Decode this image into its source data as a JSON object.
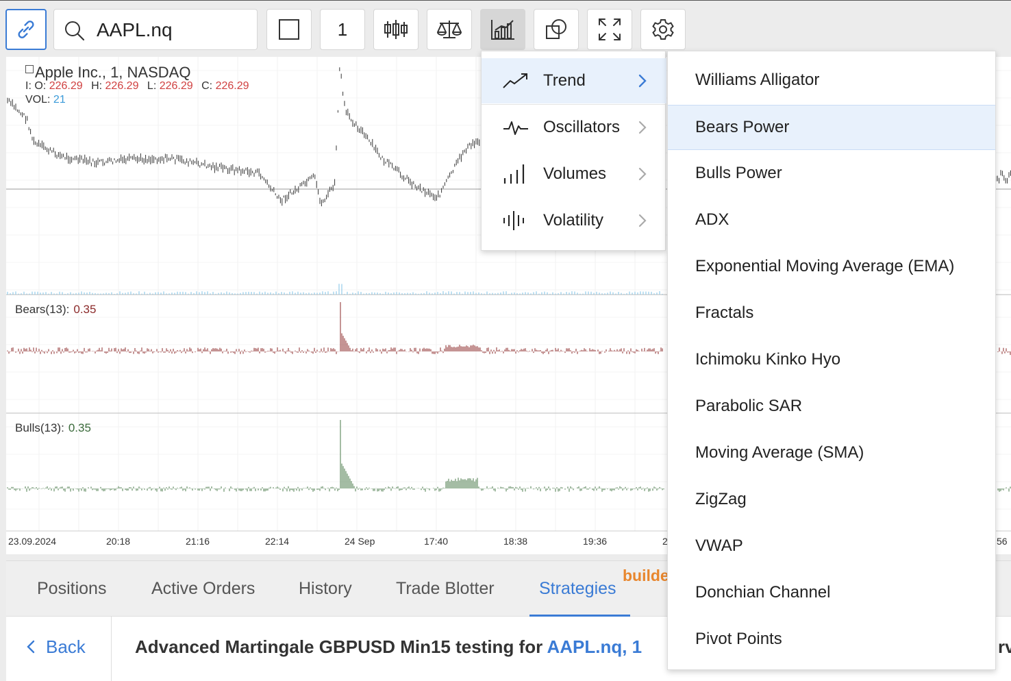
{
  "toolbar": {
    "search_value": "AAPL.nq",
    "interval_value": "1",
    "icons": [
      "link-icon",
      "search-icon",
      "square-icon",
      "candlestick-icon",
      "balance-scale-icon",
      "indicators-icon",
      "shapes-icon",
      "fullscreen-icon",
      "gear-icon"
    ]
  },
  "chart": {
    "title": "Apple Inc.,  1,  NASDAQ",
    "ohlc": {
      "o_label": "I: O:",
      "o": "226.29",
      "h_label": "H:",
      "h": "226.29",
      "l_label": "L:",
      "l": "226.29",
      "c_label": "C:",
      "c": "226.29"
    },
    "vol_label": "VOL:",
    "vol_value": "21",
    "bears_label": "Bears(13):",
    "bears_value": "0.35",
    "bulls_label": "Bulls(13):",
    "bulls_value": "0.35",
    "time_axis": [
      "23.09.2024",
      "20:18",
      "21:16",
      "22:14",
      "24 Sep",
      "17:40",
      "18:38",
      "19:36",
      "2",
      "56"
    ],
    "colors": {
      "up": "#4a7a4a",
      "down": "#8b2a2a",
      "volume": "#7ec2e6",
      "price": "#333333"
    }
  },
  "bottom": {
    "tabs": [
      "Positions",
      "Active Orders",
      "History",
      "Trade Blotter",
      "Strategies"
    ],
    "active_tab": "Strategies",
    "builder_label": "builde",
    "back_label": "Back",
    "strategy_title": "Advanced Martingale GBPUSD Min15 testing for ",
    "strategy_link": "AAPL.nq, 1",
    "edge_text": "rv"
  },
  "menu": {
    "categories": [
      {
        "label": "Trend",
        "icon": "trend-icon",
        "selected": true
      },
      {
        "label": "Oscillators",
        "icon": "oscillators-icon",
        "selected": false
      },
      {
        "label": "Volumes",
        "icon": "volumes-icon",
        "selected": false
      },
      {
        "label": "Volatility",
        "icon": "volatility-icon",
        "selected": false
      }
    ],
    "indicators": [
      {
        "label": "Williams Alligator",
        "selected": false
      },
      {
        "label": "Bears Power",
        "selected": true
      },
      {
        "label": "Bulls Power",
        "selected": false
      },
      {
        "label": "ADX",
        "selected": false
      },
      {
        "label": "Exponential Moving Average (EMA)",
        "selected": false
      },
      {
        "label": "Fractals",
        "selected": false
      },
      {
        "label": "Ichimoku Kinko Hyo",
        "selected": false
      },
      {
        "label": "Parabolic SAR",
        "selected": false
      },
      {
        "label": "Moving Average (SMA)",
        "selected": false
      },
      {
        "label": "ZigZag",
        "selected": false
      },
      {
        "label": "VWAP",
        "selected": false
      },
      {
        "label": "Donchian Channel",
        "selected": false
      },
      {
        "label": "Pivot Points",
        "selected": false
      }
    ]
  }
}
